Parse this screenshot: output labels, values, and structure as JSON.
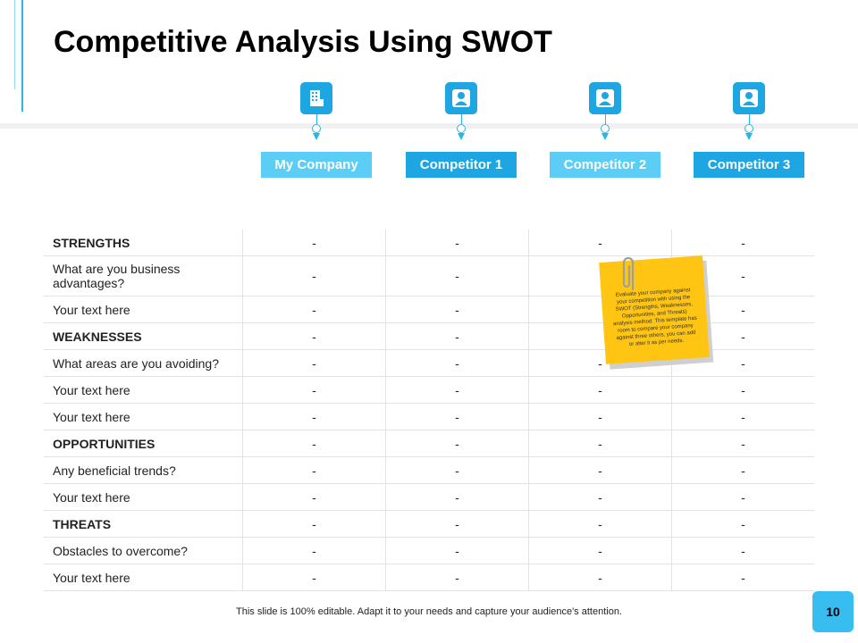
{
  "title": "Competitive Analysis Using SWOT",
  "columns": [
    {
      "label": "My Company",
      "icon": "building-icon",
      "color": "#5ccdf5"
    },
    {
      "label": "Competitor 1",
      "icon": "person-icon",
      "color": "#1ea6e3"
    },
    {
      "label": "Competitor 2",
      "icon": "person-icon",
      "color": "#5ccdf5"
    },
    {
      "label": "Competitor 3",
      "icon": "person-icon",
      "color": "#1ea6e3"
    }
  ],
  "rows": [
    {
      "label": "STRENGTHS",
      "bold": true,
      "values": [
        "-",
        "-",
        "-",
        "-"
      ]
    },
    {
      "label": "What are you business advantages?",
      "bold": false,
      "values": [
        "-",
        "-",
        "",
        "-"
      ]
    },
    {
      "label": "Your text here",
      "bold": false,
      "values": [
        "-",
        "-",
        "",
        "-"
      ]
    },
    {
      "label": "WEAKNESSES",
      "bold": true,
      "values": [
        "-",
        "-",
        "",
        "-"
      ]
    },
    {
      "label": "What areas are you avoiding?",
      "bold": false,
      "values": [
        "-",
        "-",
        "-",
        "-"
      ]
    },
    {
      "label": "Your text here",
      "bold": false,
      "values": [
        "-",
        "-",
        "-",
        "-"
      ]
    },
    {
      "label": "Your text here",
      "bold": false,
      "values": [
        "-",
        "-",
        "-",
        "-"
      ]
    },
    {
      "label": "OPPORTUNITIES",
      "bold": true,
      "values": [
        "-",
        "-",
        "-",
        "-"
      ]
    },
    {
      "label": "Any beneficial trends?",
      "bold": false,
      "values": [
        "-",
        "-",
        "-",
        "-"
      ]
    },
    {
      "label": "Your text here",
      "bold": false,
      "values": [
        "-",
        "-",
        "-",
        "-"
      ]
    },
    {
      "label": "THREATS",
      "bold": true,
      "values": [
        "-",
        "-",
        "-",
        "-"
      ]
    },
    {
      "label": "Obstacles to overcome?",
      "bold": false,
      "values": [
        "-",
        "-",
        "-",
        "-"
      ]
    },
    {
      "label": "Your text here",
      "bold": false,
      "values": [
        "-",
        "-",
        "-",
        "-"
      ]
    }
  ],
  "note": "Evaluate your company against your competition with using the SWOT (Strengths, Weaknesses, Opportunities, and Threats) analysis method. This template has room to compare your company against three others, you can add or alter it as per needs.",
  "footer": "This slide is 100% editable. Adapt it to your needs and capture your audience's attention.",
  "page_number": "10"
}
